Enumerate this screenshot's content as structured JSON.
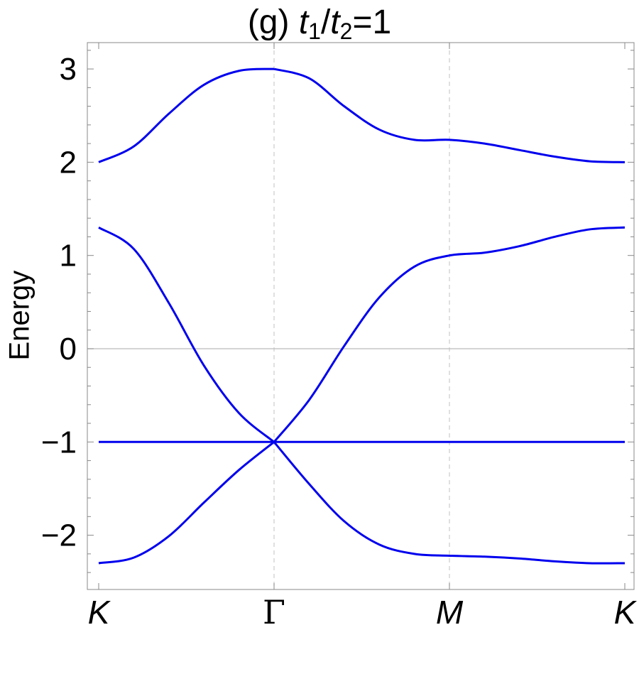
{
  "title": {
    "prefix": "(g) ",
    "t_a": "t",
    "sub_a": "1",
    "slash": "/",
    "t_b": "t",
    "sub_b": "2",
    "suffix": "=1"
  },
  "chart_data": {
    "type": "line",
    "title": "(g) t1/t2=1",
    "xlabel": "",
    "ylabel": "Energy",
    "x_ticks": [
      "K",
      "Γ",
      "M",
      "K"
    ],
    "ylim": [
      -2.6,
      3.3
    ],
    "y_ticks": [
      -2,
      -1,
      0,
      1,
      2,
      3
    ],
    "y_tick_labels": [
      "−2",
      "−1",
      "0",
      "1",
      "2",
      "3"
    ],
    "grid": "dashed vertical lines at Γ and M; solid horizontal line at 0",
    "legend": "none",
    "line_color": "#0000ee",
    "series": [
      {
        "x": [
          0,
          0.2,
          0.4,
          0.6,
          0.8,
          1.0,
          1.2,
          1.4,
          1.6,
          1.8,
          2.0,
          2.2,
          2.4,
          2.6,
          2.8,
          3.0
        ],
        "values": [
          2.0,
          2.17,
          2.52,
          2.83,
          2.98,
          3.0,
          2.9,
          2.6,
          2.35,
          2.24,
          2.24,
          2.2,
          2.13,
          2.06,
          2.01,
          2.0
        ]
      },
      {
        "x": [
          0,
          0.2,
          0.4,
          0.6,
          0.8,
          1.0,
          1.2,
          1.4,
          1.6,
          1.8,
          2.0,
          2.2,
          2.4,
          2.6,
          2.8,
          3.0
        ],
        "values": [
          1.3,
          1.07,
          0.49,
          -0.18,
          -0.69,
          -1.0,
          -0.55,
          0.03,
          0.55,
          0.88,
          1.0,
          1.03,
          1.1,
          1.2,
          1.28,
          1.3
        ]
      },
      {
        "x": [
          0,
          1.0,
          2.0,
          3.0
        ],
        "values": [
          -1.0,
          -1.0,
          -1.0,
          -1.0
        ]
      },
      {
        "x": [
          0,
          0.2,
          0.4,
          0.6,
          0.8,
          1.0,
          1.2,
          1.4,
          1.6,
          1.8,
          2.0,
          2.2,
          2.4,
          2.6,
          2.8,
          3.0
        ],
        "values": [
          -2.3,
          -2.24,
          -2.01,
          -1.65,
          -1.3,
          -1.0,
          -1.45,
          -1.85,
          -2.1,
          -2.2,
          -2.22,
          -2.23,
          -2.25,
          -2.28,
          -2.3,
          -2.3
        ]
      }
    ]
  }
}
